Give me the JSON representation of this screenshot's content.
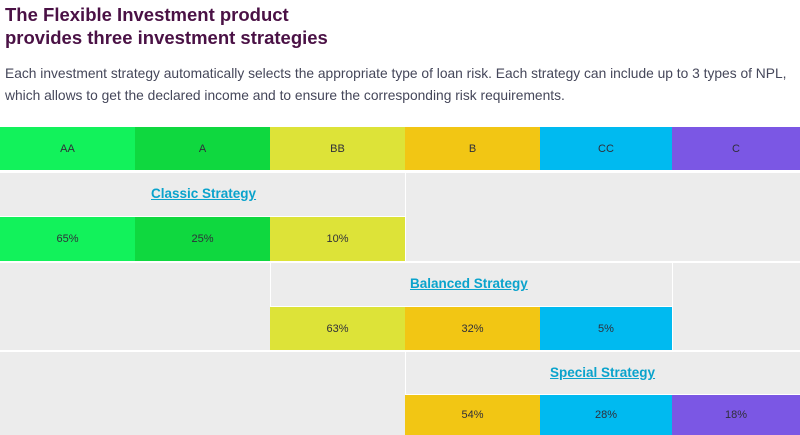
{
  "heading": {
    "line1": "The Flexible Investment product",
    "line2": "provides three investment strategies"
  },
  "description": {
    "line1": "Each investment strategy automatically selects the appropriate type of loan risk. Each strategy can include up to 3 types of NPL,",
    "line2": "which allows to get the declared income and to ensure the corresponding risk requirements."
  },
  "risk_classes": [
    {
      "label": "AA",
      "color": "#12f25b"
    },
    {
      "label": "A",
      "color": "#0fd83f"
    },
    {
      "label": "BB",
      "color": "#dde338"
    },
    {
      "label": "B",
      "color": "#f2c614"
    },
    {
      "label": "CC",
      "color": "#00baf0"
    },
    {
      "label": "C",
      "color": "#7b57e4"
    }
  ],
  "strategies": [
    {
      "name": "Classic Strategy",
      "values": [
        "65%",
        "25%",
        "10%"
      ]
    },
    {
      "name": "Balanced Strategy",
      "values": [
        "63%",
        "32%",
        "5%"
      ]
    },
    {
      "name": "Special Strategy",
      "values": [
        "54%",
        "28%",
        "18%"
      ]
    }
  ]
}
